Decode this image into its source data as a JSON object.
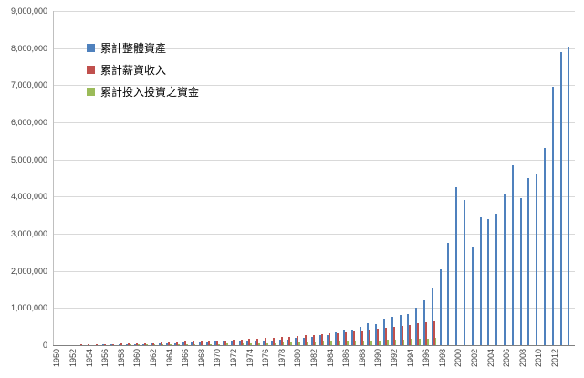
{
  "chart_data": {
    "type": "bar",
    "title": "",
    "xlabel": "",
    "ylabel": "",
    "grid": true,
    "legend_position": "inside-top-left",
    "background_color": "#ffffff",
    "gridline_color": "#d9d9d9",
    "axis_color": "#808080",
    "ylim": [
      0,
      9000000
    ],
    "y_ticks": [
      0,
      1000000,
      2000000,
      3000000,
      4000000,
      5000000,
      6000000,
      7000000,
      8000000,
      9000000
    ],
    "y_tick_labels": [
      "0",
      "1,000,000",
      "2,000,000",
      "3,000,000",
      "4,000,000",
      "5,000,000",
      "6,000,000",
      "7,000,000",
      "8,000,000",
      "9,000,000"
    ],
    "x": [
      1950,
      1951,
      1952,
      1953,
      1954,
      1955,
      1956,
      1957,
      1958,
      1959,
      1960,
      1961,
      1962,
      1963,
      1964,
      1965,
      1966,
      1967,
      1968,
      1969,
      1970,
      1971,
      1972,
      1973,
      1974,
      1975,
      1976,
      1977,
      1978,
      1979,
      1980,
      1981,
      1982,
      1983,
      1984,
      1985,
      1986,
      1987,
      1988,
      1989,
      1990,
      1991,
      1992,
      1993,
      1994,
      1995,
      1996,
      1997,
      1998,
      1999,
      2000,
      2001,
      2002,
      2003,
      2004,
      2005,
      2006,
      2007,
      2008,
      2009,
      2010,
      2011,
      2012,
      2013,
      2014
    ],
    "x_tick_labels": [
      "1950",
      "1952",
      "1954",
      "1956",
      "1958",
      "1960",
      "1962",
      "1964",
      "1966",
      "1968",
      "1970",
      "1972",
      "1974",
      "1976",
      "1978",
      "1980",
      "1982",
      "1984",
      "1986",
      "1988",
      "1990",
      "1992",
      "1994",
      "1996",
      "1998",
      "2000",
      "2002",
      "2004",
      "2006",
      "2008",
      "2010",
      "2012"
    ],
    "series": [
      {
        "key": "total-assets",
        "name": "累計整體資產",
        "color": "#4f81bd",
        "values": [
          1500,
          3000,
          5000,
          7000,
          9500,
          12000,
          15000,
          17000,
          20000,
          24000,
          28000,
          33000,
          38000,
          44000,
          50000,
          56000,
          62000,
          70000,
          78000,
          82000,
          88000,
          98000,
          110000,
          102000,
          92000,
          112000,
          125000,
          128000,
          140000,
          160000,
          185000,
          190000,
          225000,
          270000,
          280000,
          350000,
          420000,
          430000,
          490000,
          600000,
          570000,
          720000,
          760000,
          820000,
          840000,
          1000000,
          1200000,
          1550000,
          2050000,
          2750000,
          4250000,
          3900000,
          2650000,
          3450000,
          3400000,
          3550000,
          4050000,
          4850000,
          3950000,
          4500000,
          4600000,
          5300000,
          6950000,
          7900000,
          8050000
        ]
      },
      {
        "key": "salary-income",
        "name": "累計薪資收入",
        "color": "#c0504d",
        "values": [
          3500,
          7200,
          11000,
          15000,
          19200,
          23600,
          28200,
          33000,
          38100,
          43400,
          49000,
          54900,
          61100,
          67600,
          74400,
          81600,
          89100,
          97000,
          105300,
          114000,
          123100,
          132700,
          142800,
          153300,
          164400,
          176100,
          188300,
          201200,
          214700,
          228900,
          243800,
          259400,
          275900,
          293100,
          311300,
          330300,
          350300,
          371300,
          393400,
          416500,
          440800,
          466400,
          493200,
          521300,
          550900,
          581900,
          614500,
          648700,
          0,
          0,
          0,
          0,
          0,
          0,
          0,
          0,
          0,
          0,
          0,
          0,
          0,
          0,
          0,
          0,
          0
        ]
      },
      {
        "key": "invested-capital",
        "name": "累計投入投資之資金",
        "color": "#9bbb59",
        "values": [
          1000,
          2200,
          3300,
          4500,
          5800,
          7100,
          8500,
          9900,
          11400,
          13000,
          14700,
          16500,
          18300,
          20300,
          22300,
          24500,
          26700,
          29100,
          31600,
          34200,
          36900,
          39800,
          42800,
          46000,
          49300,
          52800,
          56500,
          60400,
          64400,
          68700,
          73100,
          77800,
          82800,
          87900,
          93400,
          99100,
          105100,
          111400,
          118000,
          125000,
          132200,
          139900,
          148000,
          156400,
          165300,
          174600,
          184400,
          194600,
          0,
          0,
          0,
          0,
          0,
          0,
          0,
          0,
          0,
          0,
          0,
          0,
          0,
          0,
          0,
          0,
          0
        ]
      }
    ]
  }
}
